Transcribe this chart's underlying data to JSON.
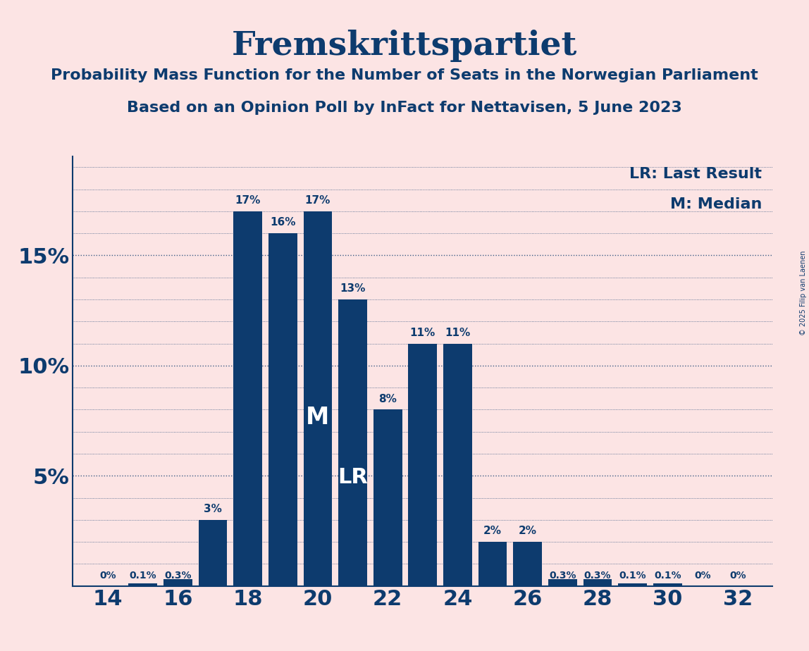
{
  "title": "Fremskrittspartiet",
  "subtitle1": "Probability Mass Function for the Number of Seats in the Norwegian Parliament",
  "subtitle2": "Based on an Opinion Poll by InFact for Nettavisen, 5 June 2023",
  "copyright": "© 2025 Filip van Laenen",
  "legend_lr": "LR: Last Result",
  "legend_m": "M: Median",
  "seats": [
    14,
    15,
    16,
    17,
    18,
    19,
    20,
    21,
    22,
    23,
    24,
    25,
    26,
    27,
    28,
    29,
    30,
    31,
    32
  ],
  "values": [
    0.0,
    0.1,
    0.3,
    3.0,
    17.0,
    16.0,
    17.0,
    13.0,
    8.0,
    11.0,
    11.0,
    2.0,
    2.0,
    0.3,
    0.3,
    0.1,
    0.1,
    0.0,
    0.0
  ],
  "labels": [
    "0%",
    "0.1%",
    "0.3%",
    "3%",
    "17%",
    "16%",
    "17%",
    "13%",
    "8%",
    "11%",
    "11%",
    "2%",
    "2%",
    "0.3%",
    "0.3%",
    "0.1%",
    "0.1%",
    "0%",
    "0%"
  ],
  "bar_color": "#0d3b6e",
  "background_color": "#fce4e4",
  "text_color": "#0d3b6e",
  "median_seat": 20,
  "last_result_seat": 21,
  "ytick_values": [
    5,
    10,
    15
  ],
  "ytick_labels": [
    "5%",
    "10%",
    "15%"
  ],
  "ylim": [
    0,
    19.5
  ],
  "xlabel_ticks": [
    14,
    16,
    18,
    20,
    22,
    24,
    26,
    28,
    30,
    32
  ],
  "grid_lines": [
    1,
    2,
    3,
    4,
    5,
    6,
    7,
    8,
    9,
    10,
    11,
    12,
    13,
    14,
    15,
    16,
    17,
    18,
    19
  ]
}
